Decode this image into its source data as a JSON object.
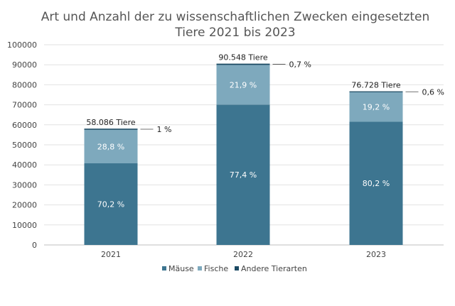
{
  "chart_data": {
    "type": "bar",
    "stacked": true,
    "title_line1": "Art und Anzahl der zu wissenschaftlichen Zwecken eingesetzten",
    "title_line2": "Tiere 2021 bis 2023",
    "categories": [
      "2021",
      "2022",
      "2023"
    ],
    "ylim": [
      0,
      100000
    ],
    "yticks": [
      "0",
      "10000",
      "20000",
      "30000",
      "40000",
      "50000",
      "60000",
      "70000",
      "80000",
      "90000",
      "100000"
    ],
    "grid": true,
    "legend_position": "bottom",
    "totals": [
      58086,
      90548,
      76728
    ],
    "total_labels": [
      "58.086 Tiere",
      "90.548 Tiere",
      "76.728 Tiere"
    ],
    "series": [
      {
        "name": "Mäuse",
        "color": "#3d7590",
        "values": [
          40776,
          70084,
          61536
        ],
        "labels": [
          "70,2 %",
          "77,4 %",
          "80,2 %"
        ]
      },
      {
        "name": "Fische",
        "color": "#7ea9bd",
        "values": [
          16729,
          19830,
          14732
        ],
        "labels": [
          "28,8 %",
          "21,9 %",
          "19,2 %"
        ]
      },
      {
        "name": "Andere Tierarten",
        "color": "#1b4a63",
        "values": [
          581,
          634,
          460
        ],
        "labels": [
          "1 %",
          "0,7 %",
          "0,6 %"
        ]
      }
    ]
  }
}
